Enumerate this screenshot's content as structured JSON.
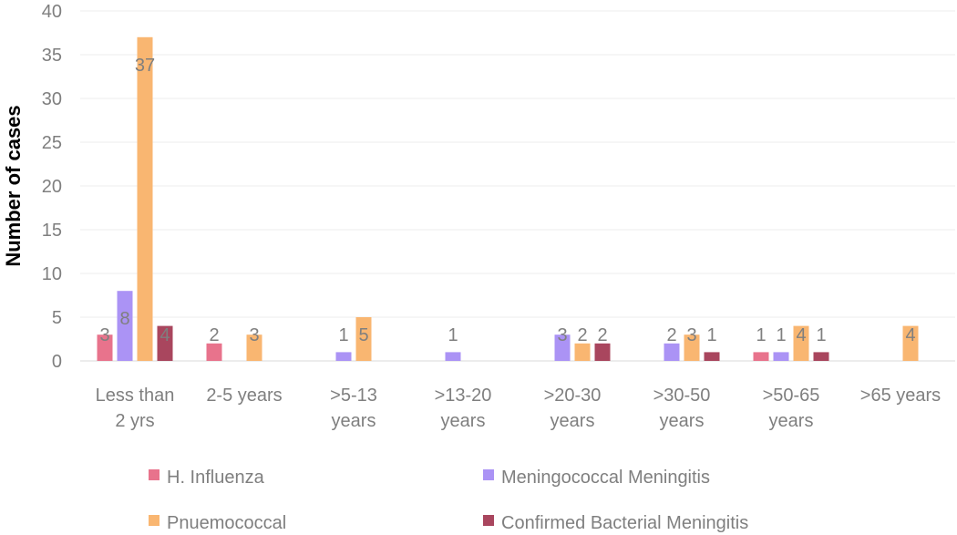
{
  "chart_data": {
    "type": "bar",
    "title": "",
    "xlabel": "",
    "ylabel": "Number of cases",
    "ylim": [
      0,
      40
    ],
    "yticks": [
      0,
      5,
      10,
      15,
      20,
      25,
      30,
      35,
      40
    ],
    "grid": true,
    "legend_position": "bottom",
    "categories": [
      [
        "Less than",
        "2 yrs"
      ],
      [
        "2-5 years"
      ],
      [
        ">5-13",
        "years"
      ],
      [
        ">13-20",
        "years"
      ],
      [
        ">20-30",
        "years"
      ],
      [
        ">30-50",
        "years"
      ],
      [
        ">50-65",
        "years"
      ],
      [
        ">65 years"
      ]
    ],
    "series": [
      {
        "name": "H. Influenza",
        "color": "#e8738c",
        "values": [
          3,
          2,
          null,
          null,
          null,
          null,
          1,
          null
        ]
      },
      {
        "name": "Meningococcal Meningitis",
        "color": "#ab93f5",
        "values": [
          8,
          null,
          1,
          1,
          3,
          2,
          1,
          null
        ]
      },
      {
        "name": "Pnuemococcal",
        "color": "#f9b671",
        "values": [
          37,
          3,
          5,
          null,
          2,
          3,
          4,
          4
        ]
      },
      {
        "name": "Confirmed Bacterial Meningitis",
        "color": "#a9465e",
        "values": [
          4,
          null,
          null,
          null,
          2,
          1,
          1,
          null
        ]
      }
    ]
  }
}
